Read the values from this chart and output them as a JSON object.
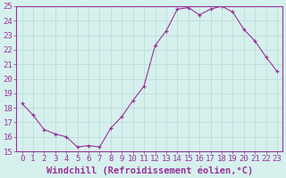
{
  "x": [
    0,
    1,
    2,
    3,
    4,
    5,
    6,
    7,
    8,
    9,
    10,
    11,
    12,
    13,
    14,
    15,
    16,
    17,
    18,
    19,
    20,
    21,
    22,
    23
  ],
  "y": [
    18.3,
    17.5,
    16.5,
    16.2,
    16.0,
    15.3,
    15.4,
    15.3,
    16.6,
    17.4,
    18.5,
    19.5,
    22.3,
    23.3,
    24.8,
    24.9,
    24.4,
    24.8,
    25.0,
    24.6,
    23.4,
    22.6,
    21.5,
    20.5
  ],
  "line_color": "#993399",
  "marker": "+",
  "bg_color": "#d6f0ee",
  "grid_color": "#b8d8d4",
  "axis_color": "#993399",
  "xlabel": "Windchill (Refroidissement éolien,°C)",
  "ylim": [
    15,
    25
  ],
  "xlim_min": -0.5,
  "xlim_max": 23.5,
  "yticks": [
    15,
    16,
    17,
    18,
    19,
    20,
    21,
    22,
    23,
    24,
    25
  ],
  "xtick_labels": [
    "0",
    "1",
    "2",
    "3",
    "4",
    "5",
    "6",
    "7",
    "8",
    "9",
    "10",
    "11",
    "12",
    "13",
    "14",
    "15",
    "16",
    "17",
    "18",
    "19",
    "20",
    "21",
    "22",
    "23"
  ],
  "fontsize_ticks": 6.5,
  "fontsize_xlabel": 7.5,
  "spine_color": "#993399"
}
